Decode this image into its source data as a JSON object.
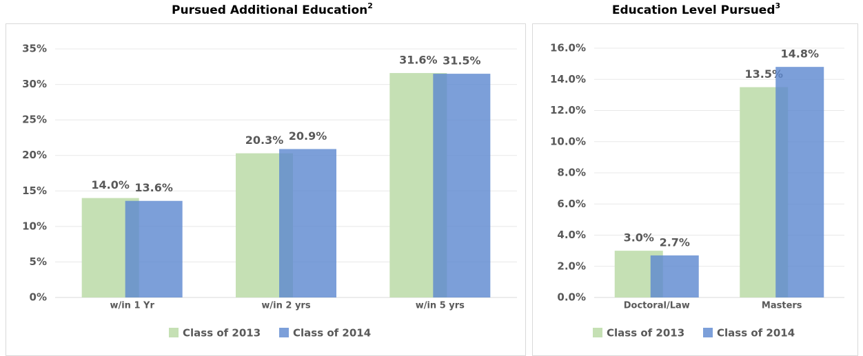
{
  "chart_data": [
    {
      "type": "bar",
      "title": "Pursued Additional Education",
      "title_superscript": "2",
      "categories": [
        "w/in 1 Yr",
        "w/in 2 yrs",
        "w/in 5 yrs"
      ],
      "series": [
        {
          "name": "Class of 2013",
          "color": "#c5e0b4",
          "values": [
            14.0,
            20.3,
            31.6
          ],
          "value_labels": [
            "14.0%",
            "20.3%",
            "31.6%"
          ]
        },
        {
          "name": "Class of 2014",
          "color": "#5b87cf",
          "values": [
            13.6,
            20.9,
            31.5
          ],
          "value_labels": [
            "13.6%",
            "20.9%",
            "31.5%"
          ]
        }
      ],
      "ylim": [
        0,
        35
      ],
      "yticks": [
        {
          "value": 0,
          "label": "0%"
        },
        {
          "value": 5,
          "label": "5%"
        },
        {
          "value": 10,
          "label": "10%"
        },
        {
          "value": 15,
          "label": "15%"
        },
        {
          "value": 20,
          "label": "20%"
        },
        {
          "value": 25,
          "label": "25%"
        },
        {
          "value": 30,
          "label": "30%"
        },
        {
          "value": 35,
          "label": "35%"
        }
      ],
      "grid": true,
      "legend": "bottom"
    },
    {
      "type": "bar",
      "title": "Education Level Pursued",
      "title_superscript": "3",
      "categories": [
        "Doctoral/Law",
        "Masters"
      ],
      "series": [
        {
          "name": "Class of 2013",
          "color": "#c5e0b4",
          "values": [
            3.0,
            13.5
          ],
          "value_labels": [
            "3.0%",
            "13.5%"
          ]
        },
        {
          "name": "Class of 2014",
          "color": "#5b87cf",
          "values": [
            2.7,
            14.8
          ],
          "value_labels": [
            "2.7%",
            "14.8%"
          ]
        }
      ],
      "ylim": [
        0,
        16
      ],
      "yticks": [
        {
          "value": 0,
          "label": "0.0%"
        },
        {
          "value": 2,
          "label": "2.0%"
        },
        {
          "value": 4,
          "label": "4.0%"
        },
        {
          "value": 6,
          "label": "6.0%"
        },
        {
          "value": 8,
          "label": "8.0%"
        },
        {
          "value": 10,
          "label": "10.0%"
        },
        {
          "value": 12,
          "label": "12.0%"
        },
        {
          "value": 14,
          "label": "14.0%"
        },
        {
          "value": 16,
          "label": "16.0%"
        }
      ],
      "grid": true,
      "legend": "bottom"
    }
  ]
}
